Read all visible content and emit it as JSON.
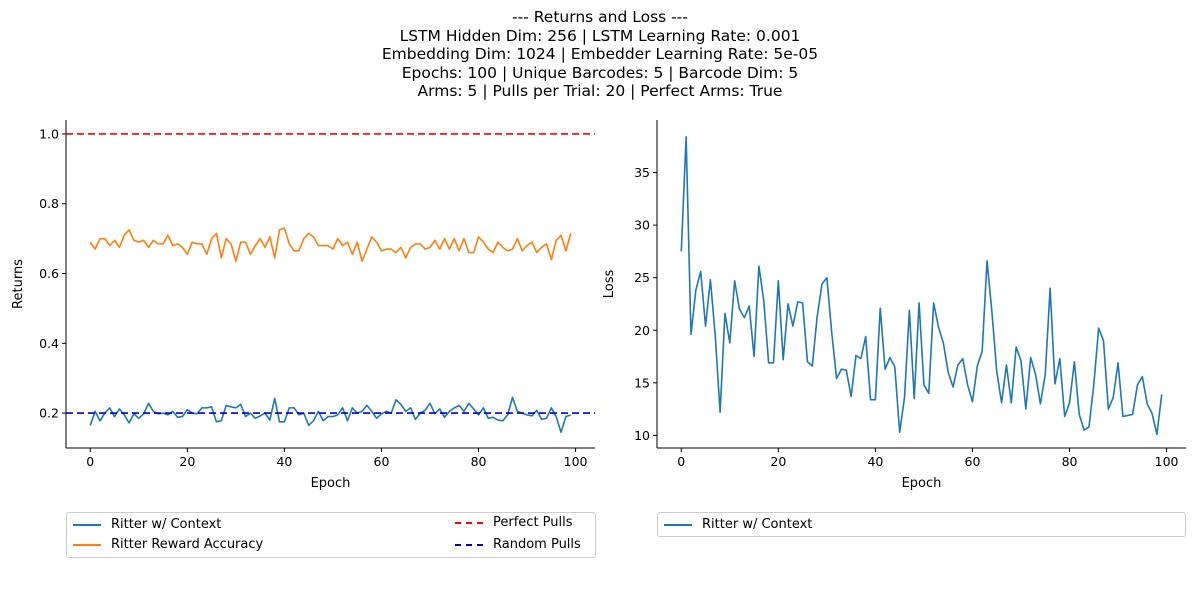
{
  "title_lines": [
    "--- Returns and Loss ---",
    "LSTM Hidden Dim: 256 | LSTM Learning Rate: 0.001",
    "Embedding Dim: 1024 | Embedder Learning Rate: 5e-05",
    "Epochs: 100 | Unique Barcodes: 5 | Barcode Dim: 5",
    "Arms: 5 | Pulls per Trial: 20 | Perfect Arms: True"
  ],
  "colors": {
    "blue": "#1f77b4",
    "orange": "#ff7f0e",
    "red": "#ff0000",
    "darkblue": "#0000cd"
  },
  "chart_data": [
    {
      "type": "line",
      "xlabel": "Epoch",
      "ylabel": "Returns",
      "xlim": [
        -5,
        104
      ],
      "ylim": [
        0.1,
        1.04
      ],
      "xticks": [
        0,
        20,
        40,
        60,
        80,
        100
      ],
      "yticks": [
        0.2,
        0.4,
        0.6,
        0.8,
        1.0
      ],
      "ytick_labels": [
        "0.2",
        "0.4",
        "0.6",
        "0.8",
        "1.0"
      ],
      "legend_position": "below",
      "series": [
        {
          "name": "Ritter w/ Context",
          "color": "blue",
          "style": "solid",
          "values": [
            0.165,
            0.205,
            0.178,
            0.2,
            0.215,
            0.19,
            0.212,
            0.195,
            0.172,
            0.198,
            0.185,
            0.198,
            0.228,
            0.205,
            0.198,
            0.2,
            0.195,
            0.205,
            0.188,
            0.19,
            0.21,
            0.2,
            0.198,
            0.215,
            0.215,
            0.218,
            0.175,
            0.178,
            0.222,
            0.218,
            0.215,
            0.225,
            0.19,
            0.2,
            0.185,
            0.192,
            0.2,
            0.18,
            0.242,
            0.175,
            0.175,
            0.215,
            0.215,
            0.195,
            0.2,
            0.165,
            0.178,
            0.205,
            0.178,
            0.19,
            0.19,
            0.195,
            0.215,
            0.178,
            0.215,
            0.2,
            0.205,
            0.222,
            0.205,
            0.185,
            0.198,
            0.205,
            0.2,
            0.238,
            0.225,
            0.205,
            0.215,
            0.182,
            0.2,
            0.208,
            0.228,
            0.198,
            0.212,
            0.188,
            0.205,
            0.215,
            0.222,
            0.205,
            0.228,
            0.212,
            0.195,
            0.215,
            0.185,
            0.188,
            0.18,
            0.178,
            0.195,
            0.245,
            0.205,
            0.2,
            0.195,
            0.192,
            0.208,
            0.182,
            0.185,
            0.215,
            0.19,
            0.145,
            0.19,
            0.195
          ]
        },
        {
          "name": "Ritter Reward Accuracy",
          "color": "orange",
          "style": "solid",
          "values": [
            0.69,
            0.67,
            0.7,
            0.7,
            0.68,
            0.695,
            0.675,
            0.71,
            0.725,
            0.695,
            0.69,
            0.695,
            0.675,
            0.695,
            0.685,
            0.685,
            0.71,
            0.68,
            0.685,
            0.675,
            0.655,
            0.69,
            0.685,
            0.685,
            0.655,
            0.7,
            0.715,
            0.645,
            0.7,
            0.685,
            0.635,
            0.69,
            0.69,
            0.655,
            0.68,
            0.7,
            0.675,
            0.705,
            0.645,
            0.725,
            0.73,
            0.685,
            0.665,
            0.665,
            0.7,
            0.715,
            0.705,
            0.68,
            0.68,
            0.68,
            0.67,
            0.7,
            0.68,
            0.69,
            0.655,
            0.69,
            0.635,
            0.67,
            0.705,
            0.69,
            0.665,
            0.67,
            0.67,
            0.66,
            0.675,
            0.645,
            0.675,
            0.685,
            0.685,
            0.67,
            0.675,
            0.695,
            0.67,
            0.7,
            0.67,
            0.7,
            0.665,
            0.7,
            0.66,
            0.66,
            0.705,
            0.69,
            0.67,
            0.66,
            0.69,
            0.675,
            0.665,
            0.67,
            0.7,
            0.665,
            0.68,
            0.69,
            0.66,
            0.675,
            0.685,
            0.64,
            0.695,
            0.71,
            0.665,
            0.715
          ]
        },
        {
          "name": "Perfect Pulls",
          "color": "red",
          "style": "dashed",
          "constant": 1.0
        },
        {
          "name": "Random Pulls",
          "color": "darkblue",
          "style": "dashed",
          "constant": 0.2
        }
      ]
    },
    {
      "type": "line",
      "xlabel": "Epoch",
      "ylabel": "Loss",
      "xlim": [
        -5,
        104
      ],
      "ylim": [
        8.8,
        40
      ],
      "xticks": [
        0,
        20,
        40,
        60,
        80,
        100
      ],
      "yticks": [
        10,
        15,
        20,
        25,
        30,
        35
      ],
      "ytick_labels": [
        "10",
        "15",
        "20",
        "25",
        "30",
        "35"
      ],
      "legend_position": "below",
      "series": [
        {
          "name": "Ritter w/ Context",
          "color": "blue",
          "style": "solid",
          "values": [
            27.5,
            38.4,
            19.6,
            23.8,
            25.6,
            20.4,
            24.8,
            19.5,
            12.2,
            21.6,
            18.8,
            24.7,
            22.0,
            21.2,
            22.3,
            17.5,
            26.1,
            22.8,
            16.9,
            16.9,
            24.7,
            17.2,
            22.5,
            20.4,
            22.7,
            22.6,
            17.0,
            16.6,
            21.3,
            24.4,
            25.0,
            19.8,
            15.4,
            16.3,
            16.2,
            13.7,
            17.6,
            17.3,
            19.4,
            13.4,
            13.4,
            22.1,
            16.3,
            17.4,
            16.5,
            10.3,
            13.6,
            21.9,
            13.5,
            22.6,
            14.8,
            14.0,
            22.6,
            20.3,
            18.8,
            16.0,
            14.6,
            16.7,
            17.3,
            14.8,
            13.2,
            16.6,
            18.0,
            26.6,
            21.8,
            16.1,
            13.1,
            16.7,
            13.1,
            18.4,
            17.1,
            12.5,
            17.4,
            15.8,
            13.0,
            15.8,
            24.0,
            14.9,
            17.3,
            11.8,
            13.1,
            17.0,
            12.0,
            10.5,
            10.8,
            14.8,
            20.2,
            19.0,
            12.5,
            13.6,
            16.9,
            11.8,
            11.9,
            12.0,
            14.8,
            15.6,
            13.0,
            12.1,
            10.1,
            13.9
          ]
        }
      ]
    }
  ]
}
